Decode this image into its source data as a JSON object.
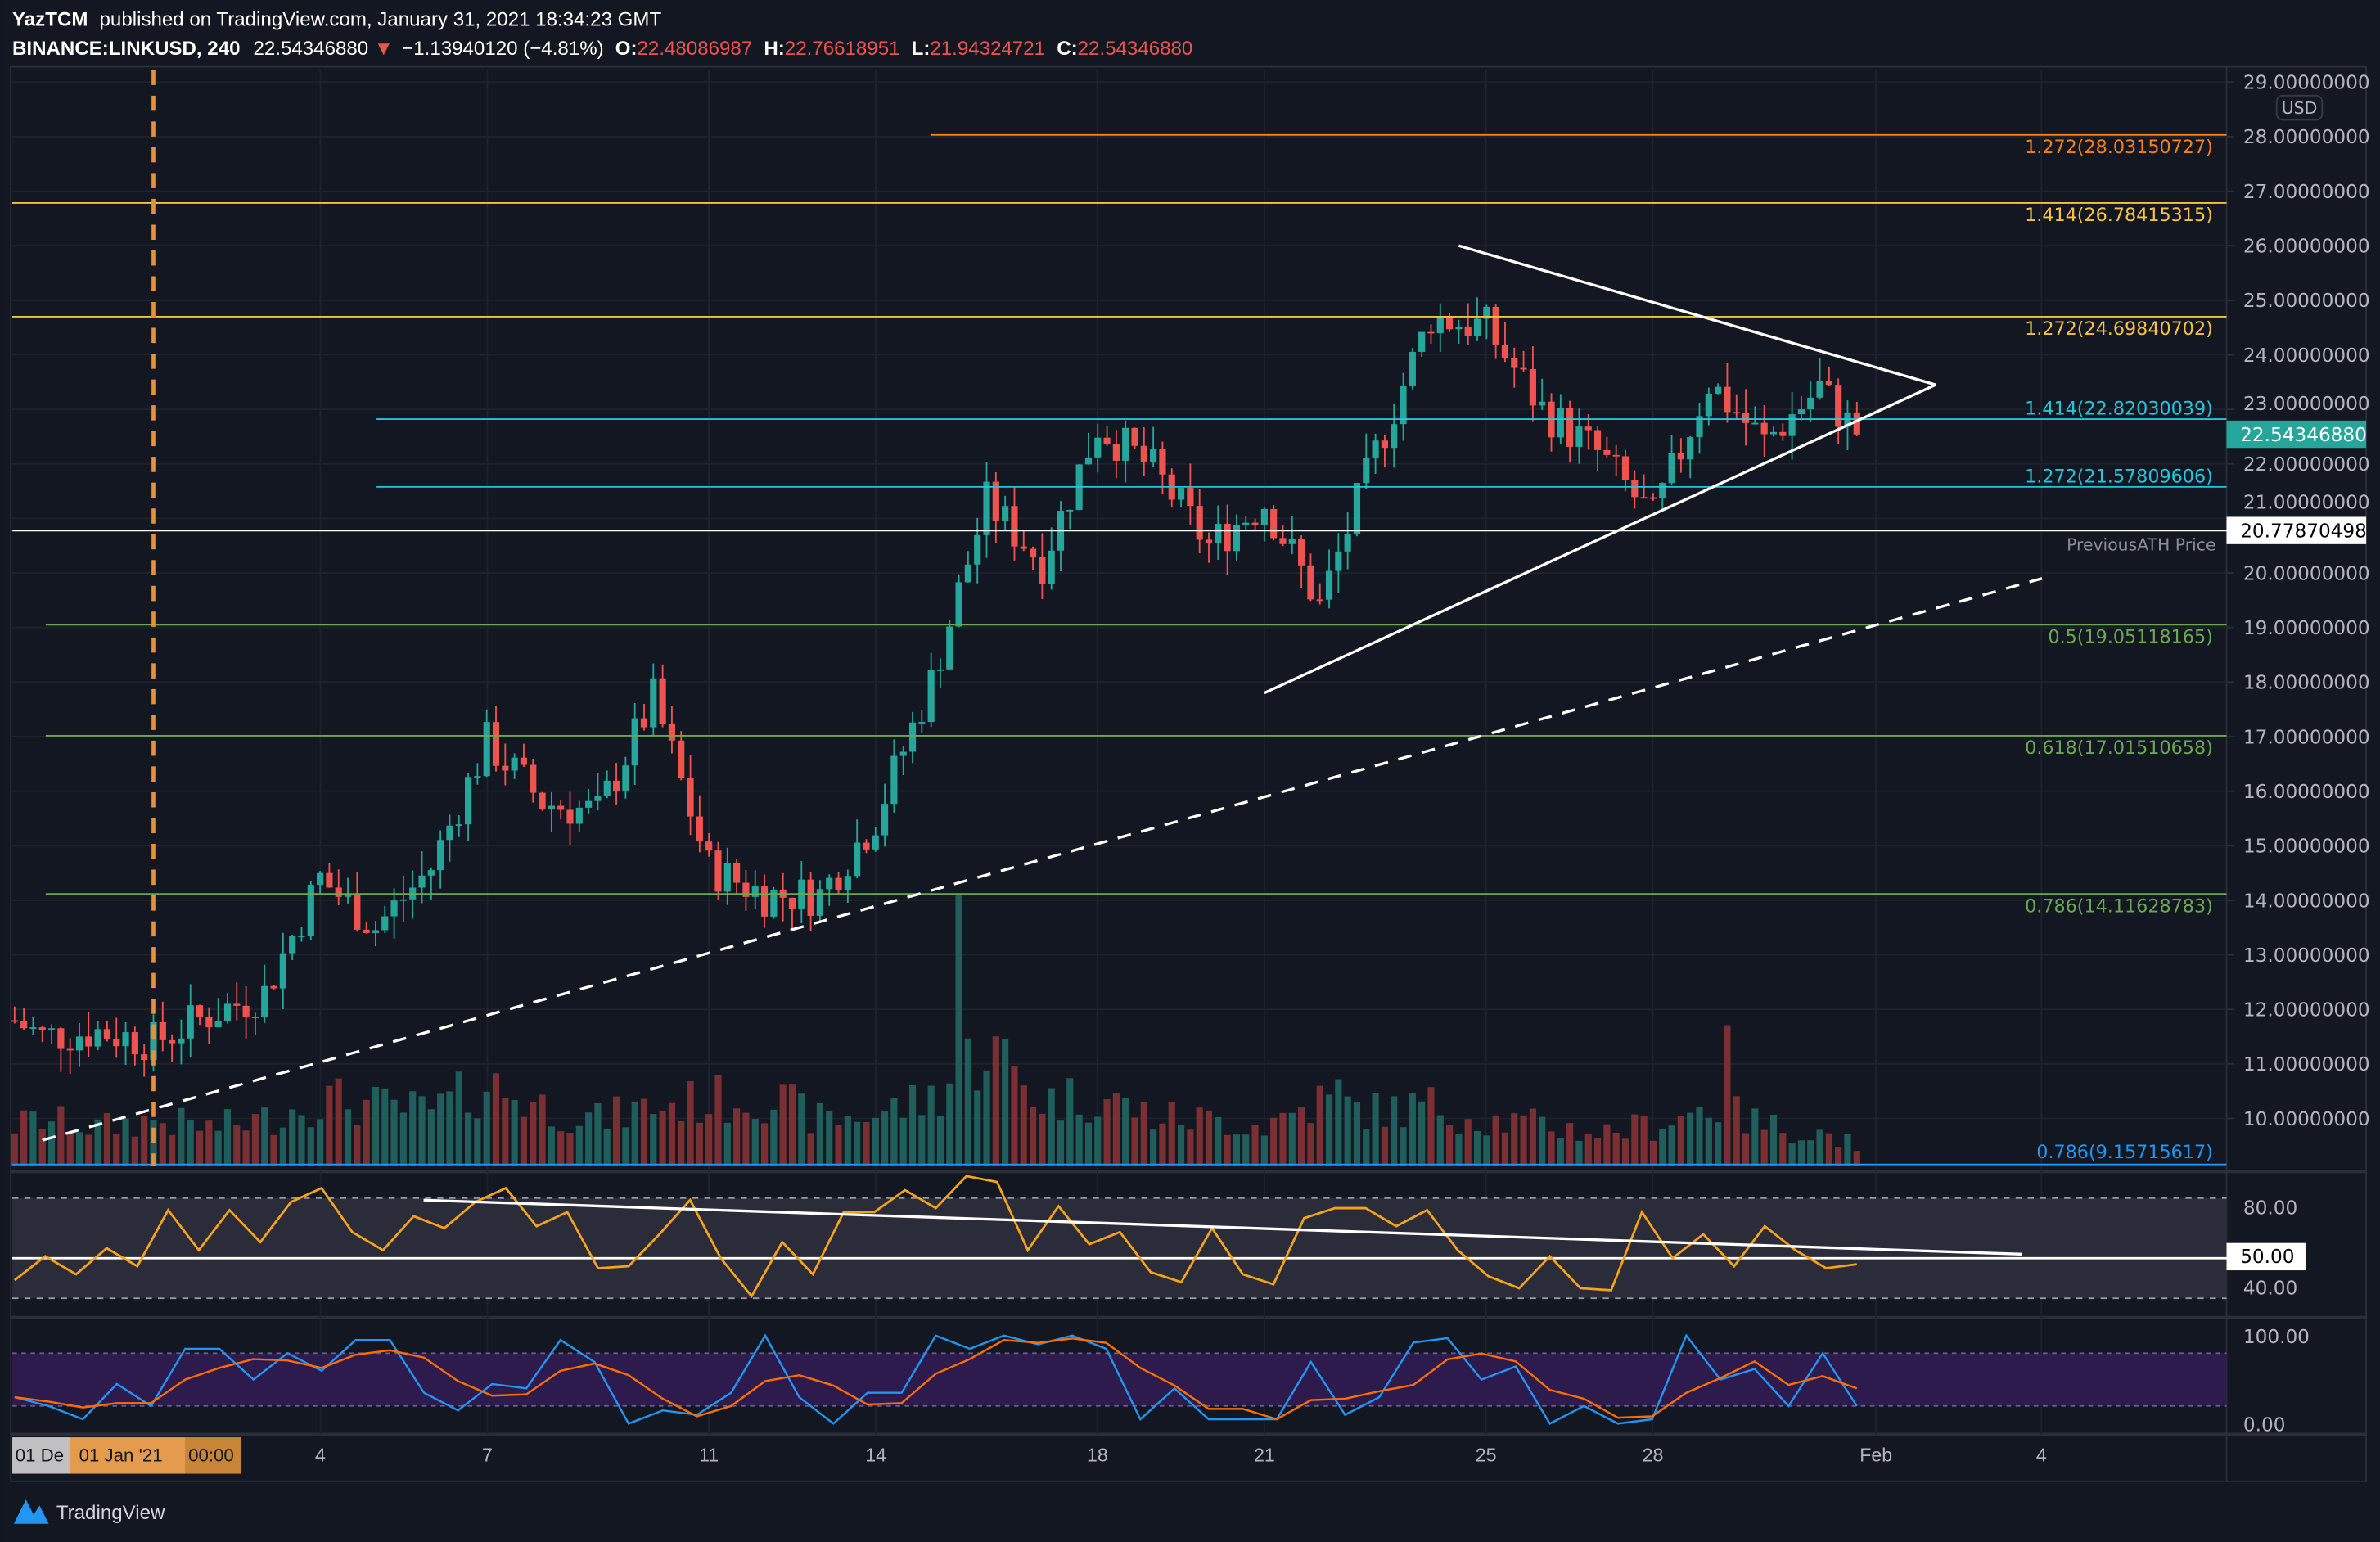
{
  "header": {
    "author": "YazTCM",
    "published": "published on TradingView.com, January 31, 2021 18:34:23 GMT",
    "symbol": "BINANCE:LINKUSD, 240",
    "last": "22.54346880",
    "change": "−1.13940120 (−4.81%)",
    "o_label": "O:",
    "o": "22.48086987",
    "h_label": "H:",
    "h": "22.76618951",
    "l_label": "L:",
    "l": "21.94324721",
    "c_label": "C:",
    "c": "22.54346880"
  },
  "currency_button": "USD",
  "price_axis": [
    "29.00000000",
    "28.00000000",
    "27.00000000",
    "26.00000000",
    "25.00000000",
    "24.00000000",
    "23.00000000",
    "22.00000000",
    "21.00000000",
    "20.00000000",
    "19.00000000",
    "18.00000000",
    "17.00000000",
    "16.00000000",
    "15.00000000",
    "14.00000000",
    "13.00000000",
    "12.00000000",
    "11.00000000",
    "10.00000000"
  ],
  "price_axis_values": [
    29,
    28,
    27,
    26,
    25,
    24,
    23,
    22,
    21,
    20,
    19,
    18,
    17,
    16,
    15,
    14,
    13,
    12,
    11,
    10
  ],
  "last_price_tag": "22.54346880",
  "ath_price_tag": "20.77870498",
  "ath_label": "PreviousATH Price",
  "fib_levels": [
    {
      "label": "1.272(28.03150727)",
      "price": 28.03150727,
      "color": "#ff7f0e"
    },
    {
      "label": "1.414(26.78415315)",
      "price": 26.78415315,
      "color": "#f5c242"
    },
    {
      "label": "1.272(24.69840702)",
      "price": 24.69840702,
      "color": "#f5c242"
    },
    {
      "label": "1.414(22.82030039)",
      "price": 22.82030039,
      "color": "#26c6da"
    },
    {
      "label": "1.272(21.57809606)",
      "price": 21.57809606,
      "color": "#26c6da"
    },
    {
      "label": "0.5(19.05118165)",
      "price": 19.05118165,
      "color": "#6aa84f"
    },
    {
      "label": "0.618(17.01510658)",
      "price": 17.01510658,
      "color": "#6aa84f"
    },
    {
      "label": "0.786(14.11628783)",
      "price": 14.11628783,
      "color": "#6aa84f"
    },
    {
      "label": "0.786(9.15715617)",
      "price": 9.15715617,
      "color": "#2196f3"
    }
  ],
  "rsi_axis": {
    "upper": "80.00",
    "mid": "50.00",
    "low": "40.00"
  },
  "stoch_axis": {
    "upper": "100.00",
    "low": "0.00"
  },
  "time_axis": {
    "cursor_prev": "01 De",
    "cursor_date": "01 Jan '21",
    "cursor_time": "00:00",
    "ticks": [
      "4",
      "7",
      "11",
      "14",
      "18",
      "21",
      "25",
      "28",
      "Feb",
      "4"
    ]
  },
  "watermark": "TradingView",
  "colors": {
    "up": "#26a69a",
    "down": "#ef5350",
    "rsi": "#f7a21b",
    "stoch_k": "#2196f3",
    "stoch_d": "#ff6d00",
    "background": "#131722"
  },
  "chart_data": {
    "type": "candlestick",
    "symbol": "BINANCE:LINKUSD",
    "interval": "240",
    "ylim": [
      9,
      29
    ],
    "price_keypoints": {
      "dates": [
        "2020-12-29T12:00",
        "2020-12-30",
        "2020-12-31",
        "2021-01-01",
        "2021-01-02",
        "2021-01-03",
        "2021-01-04",
        "2021-01-05",
        "2021-01-06",
        "2021-01-07",
        "2021-01-08",
        "2021-01-09",
        "2021-01-10",
        "2021-01-11",
        "2021-01-12",
        "2021-01-13",
        "2021-01-14",
        "2021-01-15",
        "2021-01-16",
        "2021-01-17",
        "2021-01-18",
        "2021-01-19",
        "2021-01-20",
        "2021-01-21",
        "2021-01-22",
        "2021-01-23",
        "2021-01-24",
        "2021-01-25",
        "2021-01-26",
        "2021-01-27",
        "2021-01-28",
        "2021-01-29",
        "2021-01-30",
        "2021-01-31",
        "2021-01-31T16:00"
      ],
      "close": [
        11.8,
        11.5,
        11.6,
        11.4,
        11.9,
        12.3,
        14.4,
        13.5,
        14.6,
        16.9,
        15.8,
        15.6,
        17.7,
        14.6,
        14.1,
        14.1,
        15.5,
        18.0,
        21.3,
        20.2,
        22.7,
        21.9,
        20.5,
        21.3,
        19.4,
        22.2,
        24.7,
        24.5,
        23.0,
        22.2,
        21.0,
        23.5,
        22.4,
        23.4,
        22.54
      ],
      "relative_volume": [
        15,
        17,
        14,
        17,
        14,
        17,
        25,
        22,
        20,
        30,
        22,
        17,
        22,
        24,
        26,
        17,
        19,
        25,
        45,
        24,
        26,
        18,
        17,
        15,
        24,
        20,
        22,
        17,
        15,
        12,
        15,
        22,
        15,
        12,
        8
      ]
    },
    "volume_spikes": [
      {
        "date": "2021-01-15T12:00",
        "relative_volume": 100
      },
      {
        "date": "2021-01-29T08:00",
        "relative_volume": 52
      },
      {
        "date": "2021-01-22T08:00",
        "relative_volume": 32
      }
    ],
    "rsi": {
      "start": "2020-12-29T12:00",
      "end": "2021-01-31T16:00",
      "levels": [
        80,
        50,
        30
      ],
      "values": [
        39,
        51,
        42,
        55,
        46,
        74,
        54,
        74,
        58,
        78,
        85,
        63,
        54,
        71,
        65,
        78,
        85,
        66,
        73,
        45,
        46,
        62,
        79,
        50,
        31,
        58,
        42,
        73,
        73,
        84,
        75,
        91,
        88,
        54,
        76,
        57,
        63,
        43,
        38,
        65,
        42,
        37,
        70,
        75,
        75,
        66,
        74,
        54,
        41,
        35,
        51,
        35,
        34,
        73,
        50,
        62,
        46,
        66,
        54,
        45,
        47
      ],
      "trendline": [
        {
          "date": "2021-01-06",
          "value": 79
        },
        {
          "date": "2021-02-05",
          "value": 52
        }
      ]
    },
    "stochastic": {
      "start": "2020-12-29T12:00",
      "end": "2021-01-31T16:00",
      "levels": [
        80,
        20
      ],
      "k": [
        30,
        20,
        5,
        45,
        20,
        85,
        85,
        50,
        80,
        60,
        95,
        95,
        35,
        15,
        45,
        40,
        95,
        70,
        0,
        15,
        10,
        35,
        100,
        30,
        0,
        35,
        35,
        100,
        85,
        100,
        90,
        100,
        85,
        5,
        40,
        5,
        5,
        5,
        70,
        10,
        30,
        92,
        97,
        50,
        65,
        0,
        20,
        0,
        5,
        100,
        50,
        62,
        20,
        80,
        20
      ]
    },
    "drawings": {
      "triangle_upper": [
        {
          "date": "2021-01-24T12:00",
          "price": 26.0
        },
        {
          "date": "2021-02-02T02:00",
          "price": 23.45
        }
      ],
      "triangle_lower": [
        {
          "date": "2021-01-21T00:00",
          "price": 17.8
        },
        {
          "date": "2021-02-02T02:00",
          "price": 23.45
        }
      ],
      "dashed_trendline": [
        {
          "date": "2020-12-30",
          "price": 9.6
        },
        {
          "date": "2021-02-04",
          "price": 19.9
        }
      ],
      "vertical_marker_date": "2021-01-01",
      "ath_line_price": 20.77870498
    }
  }
}
